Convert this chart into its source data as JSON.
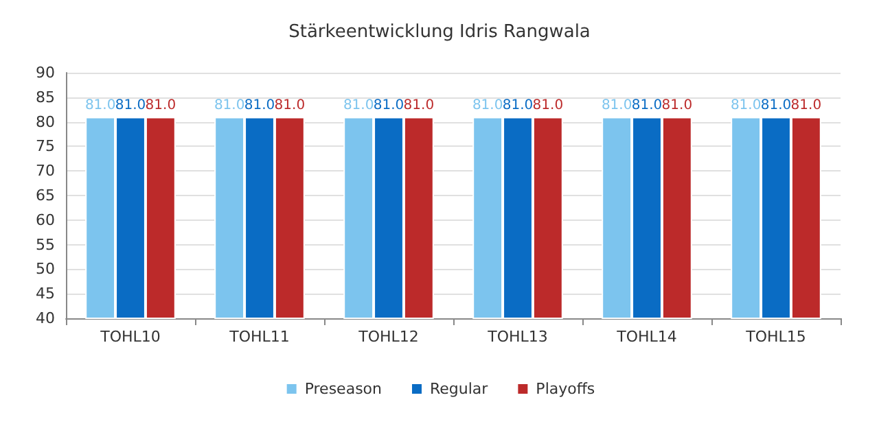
{
  "chart_data": {
    "type": "bar",
    "title": "Stärkeentwicklung Idris Rangwala",
    "categories": [
      "TOHL10",
      "TOHL11",
      "TOHL12",
      "TOHL13",
      "TOHL14",
      "TOHL15"
    ],
    "series": [
      {
        "name": "Preseason",
        "color": "#7cc4ee",
        "values": [
          81.0,
          81.0,
          81.0,
          81.0,
          81.0,
          81.0
        ],
        "value_labels": [
          "81.0",
          "81.0",
          "81.0",
          "81.0",
          "81.0",
          "81.0"
        ]
      },
      {
        "name": "Regular",
        "color": "#0a6cc4",
        "values": [
          81.0,
          81.0,
          81.0,
          81.0,
          81.0,
          81.0
        ],
        "value_labels": [
          "81.0",
          "81.0",
          "81.0",
          "81.0",
          "81.0",
          "81.0"
        ]
      },
      {
        "name": "Playoffs",
        "color": "#bc2a2a",
        "values": [
          81.0,
          81.0,
          81.0,
          81.0,
          81.0,
          81.0
        ],
        "value_labels": [
          "81.0",
          "81.0",
          "81.0",
          "81.0",
          "81.0",
          "81.0"
        ]
      }
    ],
    "ylim": [
      40,
      90
    ],
    "yticks": [
      40,
      45,
      50,
      55,
      60,
      65,
      70,
      75,
      80,
      85,
      90
    ],
    "grid": "y",
    "legend": "bottom"
  }
}
